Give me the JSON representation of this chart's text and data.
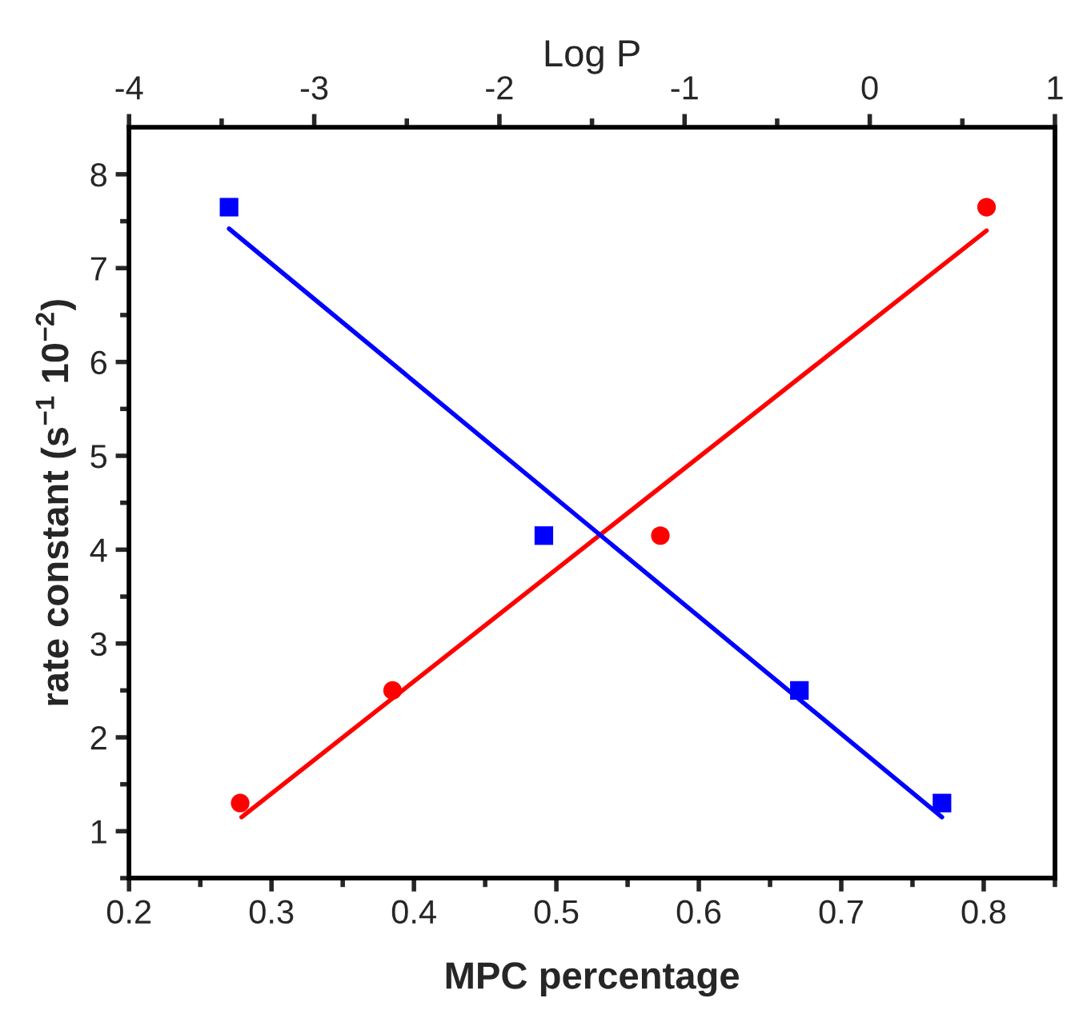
{
  "chart_data": {
    "type": "scatter",
    "xlabel": "MPC percentage",
    "ylabel": "rate constant (s$^{−1}$ 10$^{−2}$)",
    "x2label": "Log P",
    "xlim": [
      0.2,
      0.85
    ],
    "xticks": [
      0.2,
      0.3,
      0.4,
      0.5,
      0.6,
      0.7,
      0.8
    ],
    "x2lim": [
      -4,
      1
    ],
    "x2ticks": [
      -4,
      -3,
      -2,
      -1,
      0,
      1
    ],
    "ylim": [
      0.5,
      8.5
    ],
    "yticks": [
      1,
      2,
      3,
      4,
      5,
      6,
      7,
      8
    ],
    "grid": false,
    "series": [
      {
        "color": "#ff0000",
        "marker": "circle",
        "x": [
          0.278,
          0.385,
          0.573,
          0.802
        ],
        "values": [
          1.3,
          2.5,
          4.15,
          7.65
        ]
      },
      {
        "type": "line",
        "color": "#ff0000",
        "marker": "none",
        "line_style": "solid",
        "x": [
          0.279,
          0.802
        ],
        "values": [
          1.15,
          7.4
        ]
      },
      {
        "axis": "x2",
        "color": "#0000ff",
        "marker": "square",
        "x": [
          -3.46,
          -1.76,
          -0.38,
          0.39
        ],
        "values": [
          7.65,
          4.15,
          2.5,
          1.3
        ]
      },
      {
        "type": "line",
        "axis": "x2",
        "color": "#0000ff",
        "marker": "none",
        "line_style": "solid",
        "x": [
          -3.46,
          0.39
        ],
        "values": [
          7.42,
          1.15
        ]
      }
    ]
  }
}
